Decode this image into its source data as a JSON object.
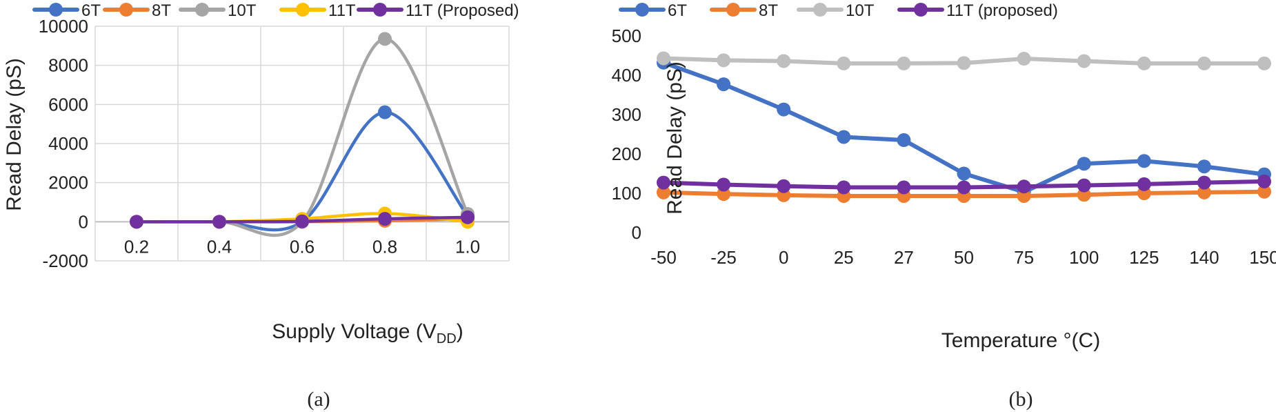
{
  "chart_data": [
    {
      "type": "line",
      "xlabel_main": "Supply Voltage (V",
      "xlabel_sub": "DD",
      "xlabel_end": ")",
      "ylabel": "Read Delay (pS)",
      "categories": [
        "0.2",
        "0.4",
        "0.6",
        "0.8",
        "1.0"
      ],
      "ylim": [
        -2000,
        10000
      ],
      "yticks": [
        "10000",
        "8000",
        "6000",
        "4000",
        "2000",
        "0",
        "-2000"
      ],
      "smooth": true,
      "grid": true,
      "legend_position": "top",
      "caption": "(a)",
      "series": [
        {
          "name": "6T",
          "color": "#4472C4",
          "values": [
            0,
            0,
            0,
            5600,
            300
          ]
        },
        {
          "name": "8T",
          "color": "#ED7D31",
          "values": [
            0,
            0,
            0,
            50,
            150
          ]
        },
        {
          "name": "10T",
          "color": "#A5A5A5",
          "values": [
            0,
            0,
            0,
            9350,
            400
          ]
        },
        {
          "name": "11T",
          "color": "#FFC000",
          "values": [
            0,
            0,
            150,
            420,
            0
          ]
        },
        {
          "name": "11T (Proposed)",
          "color": "#7030A0",
          "values": [
            0,
            0,
            20,
            150,
            230
          ]
        }
      ]
    },
    {
      "type": "line",
      "xlabel": "Temperature °(C)",
      "ylabel": "Read Delay (pS)",
      "categories": [
        "-50",
        "-25",
        "0",
        "25",
        "27",
        "50",
        "75",
        "100",
        "125",
        "140",
        "150"
      ],
      "ylim": [
        0,
        500
      ],
      "yticks": [
        "500",
        "400",
        "300",
        "200",
        "100",
        "0"
      ],
      "smooth": false,
      "grid": false,
      "legend_position": "top",
      "caption": "(b)",
      "series": [
        {
          "name": "6T",
          "color": "#4472C4",
          "values": [
            432,
            377,
            313,
            243,
            235,
            150,
            103,
            175,
            182,
            168,
            148
          ]
        },
        {
          "name": "8T",
          "color": "#ED7D31",
          "values": [
            102,
            98,
            95,
            93,
            93,
            93,
            93,
            96,
            100,
            102,
            104
          ]
        },
        {
          "name": "10T",
          "color": "#BFBFBF",
          "values": [
            443,
            438,
            436,
            430,
            430,
            431,
            442,
            436,
            430,
            430,
            430
          ]
        },
        {
          "name": "11T (proposed)",
          "color": "#7030A0",
          "values": [
            127,
            122,
            118,
            115,
            115,
            115,
            117,
            120,
            123,
            127,
            130
          ]
        }
      ]
    }
  ]
}
